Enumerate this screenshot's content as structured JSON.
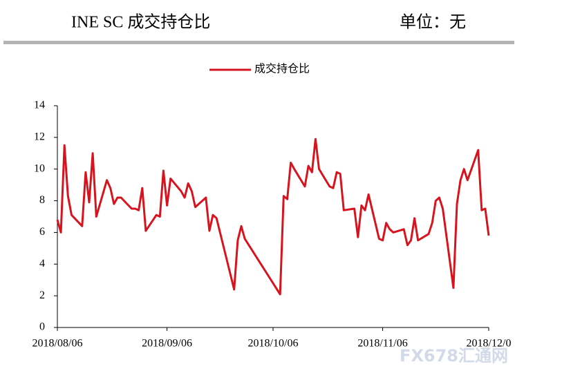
{
  "header": {
    "title": "INE SC 成交持仓比",
    "unit": "单位：无"
  },
  "watermark": "FX678汇通网",
  "chart_data": {
    "type": "line",
    "x": [
      "2018-08-06",
      "2018-08-07",
      "2018-08-08",
      "2018-08-09",
      "2018-08-10",
      "2018-08-13",
      "2018-08-14",
      "2018-08-15",
      "2018-08-16",
      "2018-08-17",
      "2018-08-20",
      "2018-08-21",
      "2018-08-22",
      "2018-08-23",
      "2018-08-24",
      "2018-08-27",
      "2018-08-28",
      "2018-08-29",
      "2018-08-30",
      "2018-08-31",
      "2018-09-03",
      "2018-09-04",
      "2018-09-05",
      "2018-09-06",
      "2018-09-07",
      "2018-09-10",
      "2018-09-11",
      "2018-09-12",
      "2018-09-13",
      "2018-09-14",
      "2018-09-17",
      "2018-09-18",
      "2018-09-19",
      "2018-09-20",
      "2018-09-25",
      "2018-09-26",
      "2018-09-27",
      "2018-09-28",
      "2018-10-08",
      "2018-10-09",
      "2018-10-10",
      "2018-10-11",
      "2018-10-12",
      "2018-10-15",
      "2018-10-16",
      "2018-10-17",
      "2018-10-18",
      "2018-10-19",
      "2018-10-22",
      "2018-10-23",
      "2018-10-24",
      "2018-10-25",
      "2018-10-26",
      "2018-10-29",
      "2018-10-30",
      "2018-10-31",
      "2018-11-01",
      "2018-11-02",
      "2018-11-05",
      "2018-11-06",
      "2018-11-07",
      "2018-11-08",
      "2018-11-09",
      "2018-11-12",
      "2018-11-13",
      "2018-11-14",
      "2018-11-15",
      "2018-11-16",
      "2018-11-19",
      "2018-11-20",
      "2018-11-21",
      "2018-11-22",
      "2018-11-23",
      "2018-11-26",
      "2018-11-27",
      "2018-11-28",
      "2018-11-29",
      "2018-11-30",
      "2018-12-03",
      "2018-12-04",
      "2018-12-05",
      "2018-12-06"
    ],
    "series": [
      {
        "name": "成交持仓比",
        "color": "#d7141e",
        "values": [
          6.8,
          6.0,
          11.5,
          8.3,
          7.1,
          6.4,
          9.8,
          7.9,
          11.0,
          7.0,
          9.3,
          8.8,
          7.8,
          8.2,
          8.2,
          7.5,
          7.5,
          7.4,
          8.8,
          6.1,
          7.1,
          7.0,
          9.9,
          7.7,
          9.4,
          8.6,
          8.2,
          9.1,
          8.6,
          7.6,
          8.2,
          6.1,
          7.1,
          6.9,
          2.4,
          5.5,
          6.4,
          5.6,
          2.1,
          8.3,
          8.1,
          10.4,
          10.0,
          8.9,
          10.2,
          9.8,
          11.9,
          10.0,
          8.9,
          8.8,
          9.8,
          9.7,
          7.4,
          7.5,
          5.7,
          7.7,
          7.4,
          8.4,
          5.6,
          5.5,
          6.6,
          6.2,
          6.0,
          6.2,
          5.2,
          5.5,
          6.9,
          5.5,
          5.9,
          6.6,
          8.0,
          8.2,
          7.5,
          2.5,
          7.8,
          9.3,
          10.0,
          9.3,
          11.2,
          7.4,
          7.5,
          5.8
        ]
      }
    ],
    "xlim": [
      "2018-08-06",
      "2018-12-06"
    ],
    "xticks": [
      {
        "value": "2018-08-06",
        "label": "2018/08/06"
      },
      {
        "value": "2018-09-06",
        "label": "2018/09/06"
      },
      {
        "value": "2018-10-06",
        "label": "2018/10/06"
      },
      {
        "value": "2018-11-06",
        "label": "2018/11/06"
      },
      {
        "value": "2018-12-06",
        "label": "2018/12/0"
      }
    ],
    "ylim": [
      0,
      14
    ],
    "yticks": [
      0,
      2,
      4,
      6,
      8,
      10,
      12,
      14
    ],
    "grid": false,
    "legend": "top"
  }
}
